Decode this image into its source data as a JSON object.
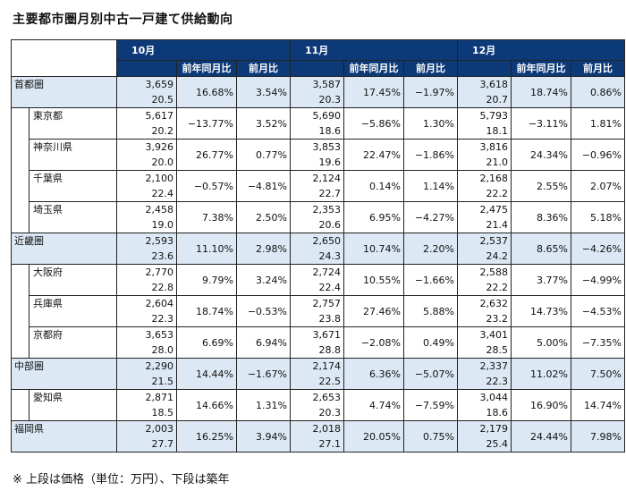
{
  "title": "主要都市圏月別中古一戸建て供給動向",
  "note": "※ 上段は価格（単位：万円）、下段は築年",
  "months": [
    "10月",
    "11月",
    "12月"
  ],
  "col_yoy": "前年同月比",
  "col_mom": "前月比",
  "rows": [
    {
      "name": "首都圏",
      "region": true,
      "hl": true,
      "m": [
        {
          "p": "3,659",
          "a": "20.5",
          "y": "16.68%",
          "r": "3.54%"
        },
        {
          "p": "3,587",
          "a": "20.3",
          "y": "17.45%",
          "r": "−1.97%"
        },
        {
          "p": "3,618",
          "a": "20.7",
          "y": "18.74%",
          "r": "0.86%"
        }
      ]
    },
    {
      "name": "東京都",
      "region": false,
      "hl": false,
      "m": [
        {
          "p": "5,617",
          "a": "20.2",
          "y": "−13.77%",
          "r": "3.52%"
        },
        {
          "p": "5,690",
          "a": "18.6",
          "y": "−5.86%",
          "r": "1.30%"
        },
        {
          "p": "5,793",
          "a": "18.1",
          "y": "−3.11%",
          "r": "1.81%"
        }
      ]
    },
    {
      "name": "神奈川県",
      "region": false,
      "hl": false,
      "m": [
        {
          "p": "3,926",
          "a": "20.0",
          "y": "26.77%",
          "r": "0.77%"
        },
        {
          "p": "3,853",
          "a": "19.6",
          "y": "22.47%",
          "r": "−1.86%"
        },
        {
          "p": "3,816",
          "a": "21.0",
          "y": "24.34%",
          "r": "−0.96%"
        }
      ]
    },
    {
      "name": "千葉県",
      "region": false,
      "hl": false,
      "m": [
        {
          "p": "2,100",
          "a": "22.4",
          "y": "−0.57%",
          "r": "−4.81%"
        },
        {
          "p": "2,124",
          "a": "22.7",
          "y": "0.14%",
          "r": "1.14%"
        },
        {
          "p": "2,168",
          "a": "22.2",
          "y": "2.55%",
          "r": "2.07%"
        }
      ]
    },
    {
      "name": "埼玉県",
      "region": false,
      "hl": false,
      "m": [
        {
          "p": "2,458",
          "a": "19.0",
          "y": "7.38%",
          "r": "2.50%"
        },
        {
          "p": "2,353",
          "a": "20.6",
          "y": "6.95%",
          "r": "−4.27%"
        },
        {
          "p": "2,475",
          "a": "21.4",
          "y": "8.36%",
          "r": "5.18%"
        }
      ]
    },
    {
      "name": "近畿圏",
      "region": true,
      "hl": true,
      "m": [
        {
          "p": "2,593",
          "a": "23.6",
          "y": "11.10%",
          "r": "2.98%"
        },
        {
          "p": "2,650",
          "a": "24.3",
          "y": "10.74%",
          "r": "2.20%"
        },
        {
          "p": "2,537",
          "a": "24.2",
          "y": "8.65%",
          "r": "−4.26%"
        }
      ]
    },
    {
      "name": "大阪府",
      "region": false,
      "hl": false,
      "m": [
        {
          "p": "2,770",
          "a": "22.8",
          "y": "9.79%",
          "r": "3.24%"
        },
        {
          "p": "2,724",
          "a": "22.4",
          "y": "10.55%",
          "r": "−1.66%"
        },
        {
          "p": "2,588",
          "a": "22.2",
          "y": "3.77%",
          "r": "−4.99%"
        }
      ]
    },
    {
      "name": "兵庫県",
      "region": false,
      "hl": false,
      "m": [
        {
          "p": "2,604",
          "a": "22.3",
          "y": "18.74%",
          "r": "−0.53%"
        },
        {
          "p": "2,757",
          "a": "23.8",
          "y": "27.46%",
          "r": "5.88%"
        },
        {
          "p": "2,632",
          "a": "23.2",
          "y": "14.73%",
          "r": "−4.53%"
        }
      ]
    },
    {
      "name": "京都府",
      "region": false,
      "hl": false,
      "m": [
        {
          "p": "3,653",
          "a": "28.0",
          "y": "6.69%",
          "r": "6.94%"
        },
        {
          "p": "3,671",
          "a": "28.8",
          "y": "−2.08%",
          "r": "0.49%"
        },
        {
          "p": "3,401",
          "a": "28.5",
          "y": "5.00%",
          "r": "−7.35%"
        }
      ]
    },
    {
      "name": "中部圏",
      "region": true,
      "hl": true,
      "m": [
        {
          "p": "2,290",
          "a": "21.5",
          "y": "14.44%",
          "r": "−1.67%"
        },
        {
          "p": "2,174",
          "a": "22.5",
          "y": "6.36%",
          "r": "−5.07%"
        },
        {
          "p": "2,337",
          "a": "22.3",
          "y": "11.02%",
          "r": "7.50%"
        }
      ]
    },
    {
      "name": "愛知県",
      "region": false,
      "hl": false,
      "m": [
        {
          "p": "2,871",
          "a": "18.5",
          "y": "14.66%",
          "r": "1.31%"
        },
        {
          "p": "2,653",
          "a": "20.3",
          "y": "4.74%",
          "r": "−7.59%"
        },
        {
          "p": "3,044",
          "a": "18.6",
          "y": "16.90%",
          "r": "14.74%"
        }
      ]
    },
    {
      "name": "福岡県",
      "region": true,
      "hl": true,
      "m": [
        {
          "p": "2,003",
          "a": "27.7",
          "y": "16.25%",
          "r": "3.94%"
        },
        {
          "p": "2,018",
          "a": "27.1",
          "y": "20.05%",
          "r": "0.75%"
        },
        {
          "p": "2,179",
          "a": "25.4",
          "y": "24.44%",
          "r": "7.98%"
        }
      ]
    }
  ],
  "colors": {
    "header_bg": "#0c3a78",
    "region_row_bg": "#dce9f4"
  }
}
